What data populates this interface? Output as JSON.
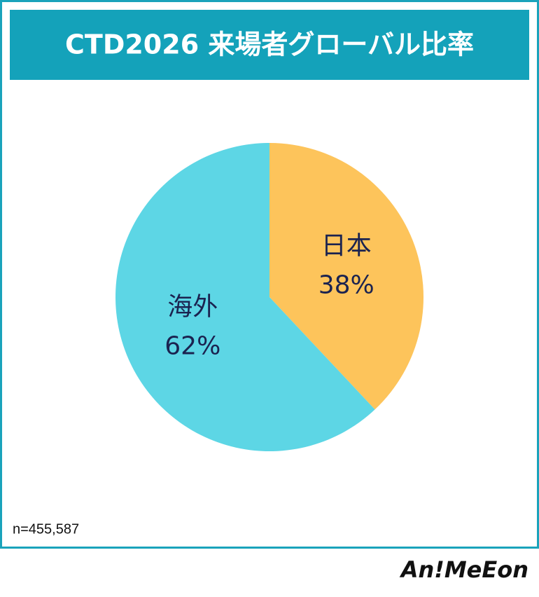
{
  "chart_data": {
    "type": "pie",
    "title": "CTD2026 来場者グローバル比率",
    "categories": [
      "日本",
      "海外"
    ],
    "values": [
      38,
      62
    ],
    "value_labels": [
      "38%",
      "62%"
    ],
    "colors": [
      "#fdc45b",
      "#5dd6e5"
    ],
    "note": "n=455,587"
  },
  "brand": "An!MeEon"
}
